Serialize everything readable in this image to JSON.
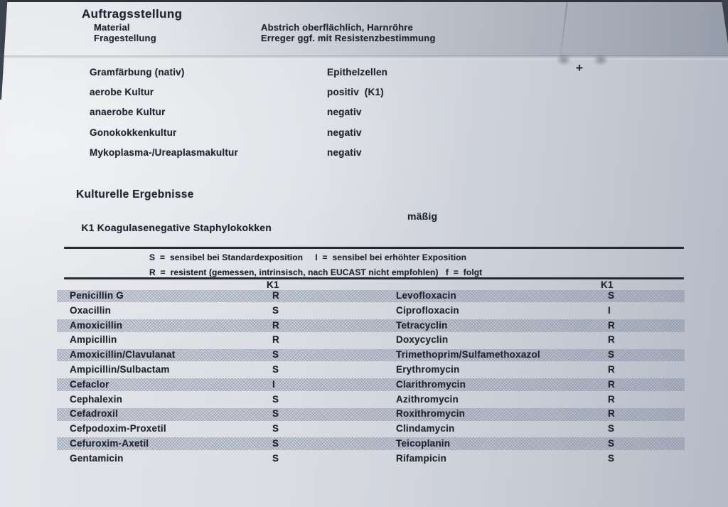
{
  "colors": {
    "paper": "#d8dbe2",
    "ink": "#20252f",
    "shade_bar": "#a9b0bf",
    "photo_edge": "#3a414c"
  },
  "annotation": {
    "plus_mark": "+"
  },
  "header": {
    "title": "Auftragsstellung",
    "fields": [
      {
        "label": "Material",
        "value": "Abstrich oberflächlich, Harnröhre"
      },
      {
        "label": "Fragestellung",
        "value": "Erreger ggf. mit Resistenzbestimmung"
      }
    ]
  },
  "findings": [
    {
      "label": "Gramfärbung (nativ)",
      "value": "Epithelzellen"
    },
    {
      "label": "aerobe Kultur",
      "value": "positiv  (K1)"
    },
    {
      "label": "anaerobe Kultur",
      "value": "negativ"
    },
    {
      "label": "Gonokokkenkultur",
      "value": "negativ"
    },
    {
      "label": "Mykoplasma-/Ureaplasmakultur",
      "value": "negativ"
    }
  ],
  "culture": {
    "title": "Kulturelle Ergebnisse",
    "code": "K1",
    "organism": "Koagulasenegative Staphylokokken",
    "quantity": "mäßig"
  },
  "antibiogram": {
    "legend_line1": "S  =  sensibel bei Standardexposition     I  =  sensibel bei erhöhter Exposition",
    "legend_line2": "R  =  resistent (gemessen, intrinsisch, nach EUCAST nicht empfohlen)   f  =  folgt",
    "column_header_left": "K1",
    "column_header_right": "K1",
    "rows": [
      {
        "left_name": "Penicillin G",
        "left_value": "R",
        "right_name": "Levofloxacin",
        "right_value": "S"
      },
      {
        "left_name": "Oxacillin",
        "left_value": "S",
        "right_name": "Ciprofloxacin",
        "right_value": "I"
      },
      {
        "left_name": "Amoxicillin",
        "left_value": "R",
        "right_name": "Tetracyclin",
        "right_value": "R"
      },
      {
        "left_name": "Ampicillin",
        "left_value": "R",
        "right_name": "Doxycyclin",
        "right_value": "R"
      },
      {
        "left_name": "Amoxicillin/Clavulanat",
        "left_value": "S",
        "right_name": "Trimethoprim/Sulfamethoxazol",
        "right_value": "S"
      },
      {
        "left_name": "Ampicillin/Sulbactam",
        "left_value": "S",
        "right_name": "Erythromycin",
        "right_value": "R"
      },
      {
        "left_name": "Cefaclor",
        "left_value": "I",
        "right_name": "Clarithromycin",
        "right_value": "R"
      },
      {
        "left_name": "Cephalexin",
        "left_value": "S",
        "right_name": "Azithromycin",
        "right_value": "R"
      },
      {
        "left_name": "Cefadroxil",
        "left_value": "S",
        "right_name": "Roxithromycin",
        "right_value": "R"
      },
      {
        "left_name": "Cefpodoxim-Proxetil",
        "left_value": "S",
        "right_name": "Clindamycin",
        "right_value": "S"
      },
      {
        "left_name": "Cefuroxim-Axetil",
        "left_value": "S",
        "right_name": "Teicoplanin",
        "right_value": "S"
      },
      {
        "left_name": "Gentamicin",
        "left_value": "S",
        "right_name": "Rifampicin",
        "right_value": "S"
      }
    ]
  }
}
